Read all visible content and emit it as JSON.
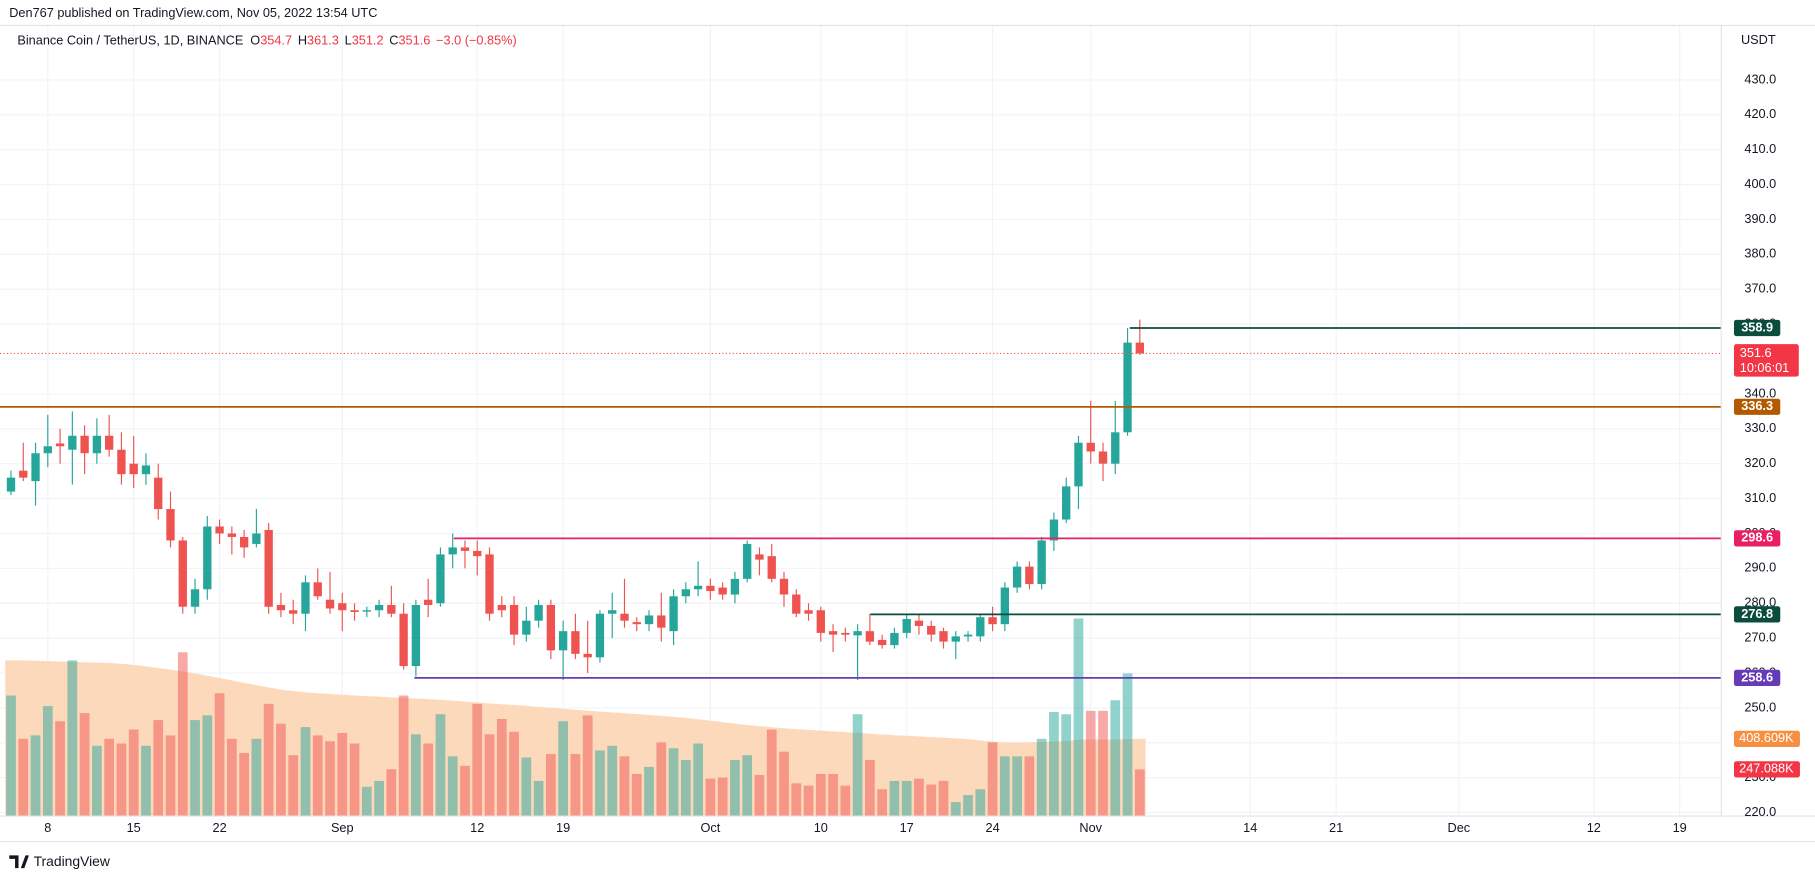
{
  "chart_data": {
    "type": "candlestick",
    "published": "Den767 published on TradingView.com, Nov 05, 2022 13:54 UTC",
    "title": "Binance Coin / TetherUS, 1D, BINANCE",
    "ohlc_letters": [
      "O",
      "H",
      "L",
      "C"
    ],
    "change": "−3.0 (−0.85%)",
    "currency": "USDT",
    "footer": "TradingView",
    "countdown": "10:06:01",
    "volume_ma_label": "408.609K",
    "volume_label": "247.088K",
    "up_color": "#26a69a",
    "down_color": "#ef5350",
    "volume_ma_color": "#fdd2b0",
    "grid": true,
    "categories": [
      null,
      null,
      null,
      "8",
      null,
      null,
      null,
      null,
      null,
      null,
      "15",
      null,
      null,
      null,
      null,
      null,
      null,
      "22",
      null,
      null,
      null,
      null,
      null,
      null,
      null,
      null,
      null,
      "Sep",
      null,
      null,
      null,
      null,
      null,
      null,
      null,
      null,
      null,
      null,
      "12",
      null,
      null,
      null,
      null,
      null,
      null,
      "19",
      null,
      null,
      null,
      null,
      null,
      null,
      null,
      null,
      null,
      null,
      null,
      "Oct",
      null,
      null,
      null,
      null,
      null,
      null,
      null,
      null,
      "10",
      null,
      null,
      null,
      null,
      null,
      null,
      "17",
      null,
      null,
      null,
      null,
      null,
      null,
      "24",
      null,
      null,
      null,
      null,
      null,
      null,
      null,
      "Nov",
      null,
      null,
      null,
      null,
      null,
      null,
      null,
      null,
      null,
      null,
      null,
      null,
      "14",
      null,
      null,
      null,
      null,
      null,
      null,
      "21",
      null,
      null,
      null,
      null,
      null,
      null,
      null,
      null,
      null,
      "Dec",
      null,
      null,
      null,
      null,
      null,
      null,
      null,
      null,
      null,
      null,
      "12",
      null,
      null,
      null,
      null,
      null,
      null,
      "19",
      null,
      null,
      null
    ],
    "open": [
      312,
      318,
      315,
      323,
      325.8,
      324,
      328,
      323,
      328,
      324,
      320,
      317,
      316,
      307,
      298,
      279,
      284,
      302,
      300,
      299,
      297,
      301,
      279.5,
      278,
      277,
      286,
      281,
      280,
      278,
      277.6,
      278,
      279.5,
      277,
      262,
      281,
      280,
      294,
      296,
      295,
      294,
      279.5,
      279.5,
      271,
      275,
      279.5,
      266.5,
      272,
      265.5,
      264.5,
      277,
      277,
      274.6,
      274,
      276.5,
      272,
      282,
      284,
      285,
      284.5,
      282.5,
      287,
      294,
      293.5,
      287,
      282.5,
      278,
      278,
      272,
      271.5,
      270.8,
      272,
      269.5,
      268,
      271.5,
      275,
      273.5,
      272,
      269,
      270.5,
      270.5,
      276,
      274,
      284.5,
      290.5,
      285.5,
      298,
      304,
      313.5,
      326,
      323.5,
      320,
      329,
      354.7,
      null,
      null,
      null,
      null,
      null,
      null,
      null,
      null,
      null,
      null,
      null,
      null,
      null,
      null,
      null,
      null,
      null,
      null,
      null,
      null,
      null,
      null,
      null,
      null,
      null,
      null,
      null,
      null,
      null,
      null,
      null,
      null,
      null,
      null,
      null,
      null,
      null,
      null,
      null,
      null,
      null,
      null,
      null,
      null,
      null,
      null,
      null
    ],
    "high": [
      318,
      326,
      326,
      334,
      330,
      335,
      331,
      333,
      334,
      329,
      328,
      323,
      320,
      312,
      299,
      287,
      305,
      304,
      302,
      301,
      307,
      303,
      283,
      281,
      288,
      290,
      289,
      283,
      280,
      279,
      281,
      285,
      280,
      281,
      287,
      296,
      300,
      298,
      298,
      296,
      282,
      282,
      279,
      281,
      281,
      275,
      277,
      275,
      278,
      283,
      287,
      276,
      278,
      283,
      284,
      286,
      292,
      287,
      286,
      289,
      298,
      296,
      297,
      289,
      284,
      280,
      279,
      274,
      273,
      274,
      277,
      271,
      273,
      277,
      277,
      275,
      273,
      272,
      272,
      277,
      279,
      286,
      292,
      292,
      299,
      306,
      316,
      328,
      338,
      326,
      338,
      358.9,
      361.3,
      null,
      null,
      null,
      null,
      null,
      null,
      null,
      null,
      null,
      null,
      null,
      null,
      null,
      null,
      null,
      null,
      null,
      null,
      null,
      null,
      null,
      null,
      null,
      null,
      null,
      null,
      null,
      null,
      null,
      null,
      null,
      null,
      null,
      null,
      null,
      null,
      null,
      null,
      null,
      null,
      null,
      null,
      null,
      null,
      null,
      null,
      null
    ],
    "low": [
      311,
      315,
      308,
      319,
      320,
      314,
      317,
      320,
      322,
      314,
      313,
      314,
      304,
      296,
      277,
      277,
      281,
      297,
      294,
      293,
      296,
      277,
      276,
      274,
      272,
      281,
      277,
      272,
      275,
      276,
      276,
      276,
      261,
      259,
      276,
      279,
      290,
      290,
      288,
      275,
      276,
      268,
      269,
      273,
      264,
      258,
      264,
      260,
      263,
      270,
      273,
      272,
      272,
      269,
      268,
      280,
      282,
      281,
      281,
      280,
      286,
      288,
      286,
      279,
      276,
      275,
      269,
      266,
      269,
      258,
      268,
      267,
      267,
      270,
      271,
      269,
      267,
      264,
      269,
      269,
      272,
      272,
      283,
      284,
      284,
      295,
      303,
      307,
      320,
      315,
      317,
      328,
      351.2,
      null,
      null,
      null,
      null,
      null,
      null,
      null,
      null,
      null,
      null,
      null,
      null,
      null,
      null,
      null,
      null,
      null,
      null,
      null,
      null,
      null,
      null,
      null,
      null,
      null,
      null,
      null,
      null,
      null,
      null,
      null,
      null,
      null,
      null,
      null,
      null,
      null,
      null,
      null,
      null,
      null,
      null,
      null,
      null,
      null,
      null,
      null
    ],
    "close": [
      316,
      316,
      323,
      325,
      325,
      328,
      323,
      328,
      324,
      317,
      317,
      319.5,
      307,
      298,
      279,
      284,
      302,
      300,
      299,
      296,
      300,
      279,
      278,
      277,
      286,
      282,
      278.5,
      278,
      277.5,
      278,
      279.5,
      277,
      262,
      279.5,
      279.5,
      294,
      296,
      295,
      293.5,
      277,
      278,
      271,
      275,
      279.5,
      266.5,
      272,
      265.5,
      264.5,
      277,
      278,
      275,
      274,
      276.5,
      273,
      282,
      284,
      285,
      283.5,
      282.5,
      287,
      297,
      292.5,
      287,
      282.5,
      277,
      277,
      271.5,
      271,
      271,
      272,
      269,
      268,
      271.5,
      275.5,
      273.5,
      271,
      269,
      270.5,
      271,
      276,
      274,
      284.5,
      290.5,
      285.5,
      298,
      304,
      313.5,
      326,
      323.5,
      320,
      329,
      354.7,
      351.6,
      null,
      null,
      null,
      null,
      null,
      null,
      null,
      null,
      null,
      null,
      null,
      null,
      null,
      null,
      null,
      null,
      null,
      null,
      null,
      null,
      null,
      null,
      null,
      null,
      null,
      null,
      null,
      null,
      null,
      null,
      null,
      null,
      null,
      null,
      null,
      null,
      null,
      null,
      null,
      null,
      null,
      null,
      null,
      null,
      null,
      null,
      null
    ],
    "volume": [
      638,
      409,
      427,
      582,
      502,
      824,
      545,
      372,
      409,
      384,
      458,
      372,
      508,
      427,
      867,
      508,
      533,
      650,
      409,
      334,
      409,
      594,
      489,
      322,
      471,
      427,
      396,
      440,
      384,
      155,
      186,
      248,
      638,
      433,
      384,
      539,
      316,
      266,
      594,
      433,
      514,
      446,
      310,
      186,
      328,
      502,
      328,
      533,
      347,
      372,
      316,
      223,
      260,
      390,
      359,
      297,
      384,
      198,
      204,
      297,
      322,
      217,
      458,
      341,
      173,
      161,
      223,
      223,
      161,
      539,
      297,
      142,
      186,
      186,
      198,
      167,
      186,
      74,
      111,
      142,
      390,
      316,
      316,
      316,
      409,
      551,
      539,
      1046,
      557,
      557,
      613,
      755,
      247.088,
      null,
      null,
      null,
      null,
      null,
      null,
      null,
      null,
      null,
      null,
      null,
      null,
      null,
      null,
      null,
      null,
      null,
      null,
      null,
      null,
      null,
      null,
      null,
      null,
      null,
      null,
      null,
      null,
      null,
      null,
      null,
      null,
      null,
      null,
      null,
      null,
      null,
      null,
      null,
      null,
      null,
      null,
      null,
      null,
      null,
      null,
      null
    ],
    "volume_ma": [
      824,
      824,
      822,
      820,
      818,
      816,
      814,
      812,
      810,
      806,
      800,
      792,
      784,
      775,
      765,
      755,
      743,
      730,
      718,
      705,
      693,
      681,
      669,
      662,
      655,
      650,
      646,
      642,
      638,
      635,
      632,
      628,
      625,
      622,
      619,
      615,
      611,
      606,
      601,
      596,
      592,
      588,
      583,
      578,
      573,
      568,
      563,
      558,
      553,
      549,
      545,
      540,
      535,
      530,
      525,
      520,
      512,
      505,
      497,
      489,
      482,
      476,
      470,
      465,
      460,
      456,
      452,
      448,
      444,
      440,
      436,
      432,
      428,
      425,
      422,
      418,
      415,
      411,
      407,
      400,
      395,
      390,
      390,
      391,
      393,
      395,
      398,
      404,
      405,
      405,
      406,
      407,
      408.609,
      null,
      null,
      null,
      null,
      null,
      null,
      null,
      null,
      null,
      null,
      null,
      null,
      null,
      null,
      null,
      null,
      null,
      null,
      null,
      null,
      null,
      null,
      null,
      null,
      null,
      null,
      null,
      null,
      null,
      null,
      null,
      null,
      null,
      null,
      null,
      null,
      null,
      null,
      null,
      null,
      null,
      null,
      null,
      null,
      null,
      null,
      null
    ],
    "volume_ylim": [
      0,
      1256
    ],
    "ylim": [
      219,
      440
    ],
    "yticks": [
      {
        "value": 220,
        "label": "220.0"
      },
      {
        "value": 230,
        "label": "230.0"
      },
      {
        "value": 240,
        "label": "240.0"
      },
      {
        "value": 250,
        "label": "250.0"
      },
      {
        "value": 260,
        "label": "260.0"
      },
      {
        "value": 270,
        "label": "270.0"
      },
      {
        "value": 280,
        "label": "280.0"
      },
      {
        "value": 290,
        "label": "290.0"
      },
      {
        "value": 300,
        "label": "300.0"
      },
      {
        "value": 310,
        "label": "310.0"
      },
      {
        "value": 320,
        "label": "320.0"
      },
      {
        "value": 330,
        "label": "330.0"
      },
      {
        "value": 340,
        "label": "340.0"
      },
      {
        "value": 350,
        "label": "350.0"
      },
      {
        "value": 360,
        "label": "360.0"
      },
      {
        "value": 370,
        "label": "370.0"
      },
      {
        "value": 380,
        "label": "380.0"
      },
      {
        "value": 390,
        "label": "390.0"
      },
      {
        "value": 400,
        "label": "400.0"
      },
      {
        "value": 410,
        "label": "410.0"
      },
      {
        "value": 420,
        "label": "420.0"
      },
      {
        "value": 430,
        "label": "430.0"
      }
    ],
    "levels": [
      {
        "value": 358.9,
        "color": "#0b4d3c"
      },
      {
        "value": 336.3,
        "color": "#b25a00"
      },
      {
        "value": 298.6,
        "color": "#e91e63"
      },
      {
        "value": 276.8,
        "color": "#0b4d3c"
      },
      {
        "value": 258.6,
        "color": "#673ab7"
      }
    ]
  }
}
